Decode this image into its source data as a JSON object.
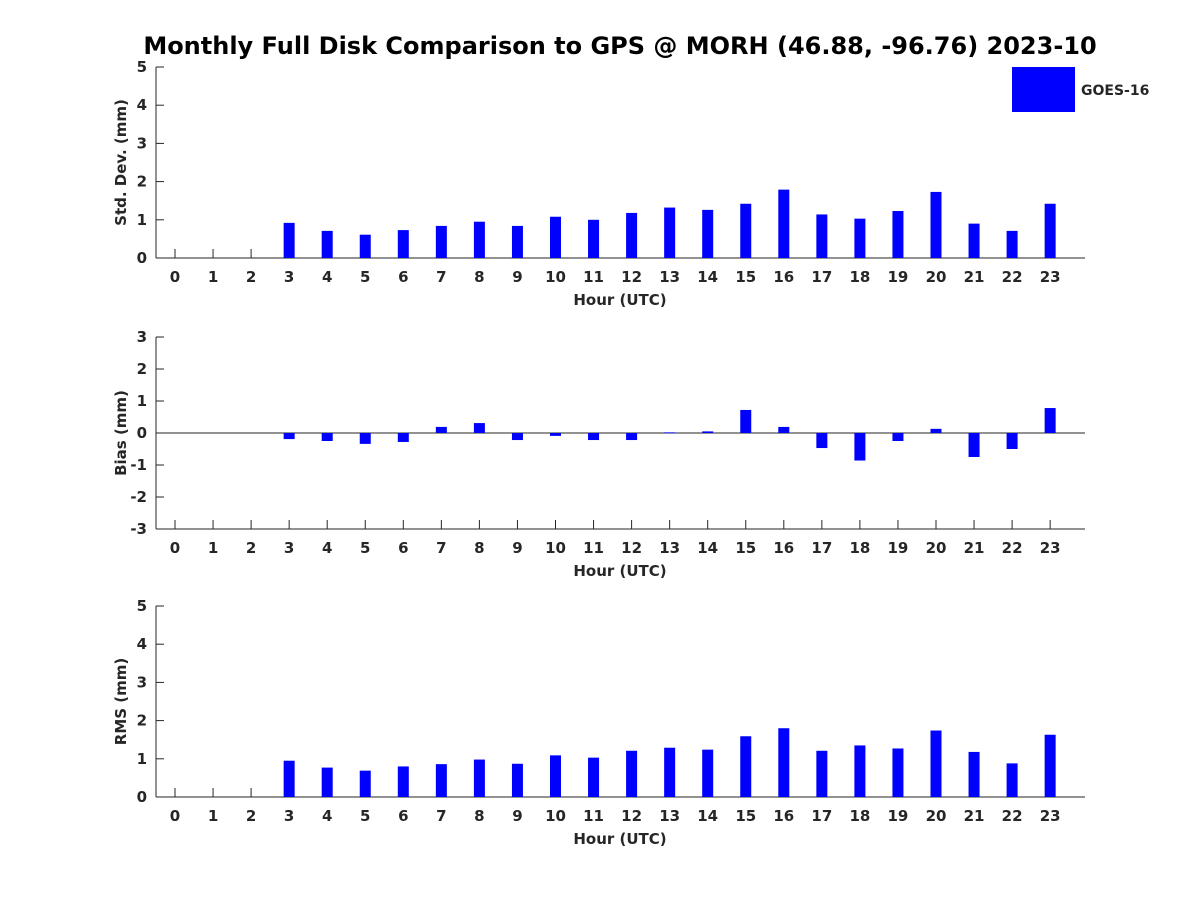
{
  "title": "Monthly Full Disk Comparison to GPS @ MORH (46.88, -96.76) 2023-10",
  "legend": {
    "label": "GOES-16",
    "color": "#0000ff",
    "position": "top-right"
  },
  "chart_data": [
    {
      "type": "bar",
      "xlabel": "Hour (UTC)",
      "ylabel": "Std. Dev. (mm)",
      "ylim": [
        0,
        5
      ],
      "yticks": [
        0,
        1,
        2,
        3,
        4,
        5
      ],
      "categories": [
        "0",
        "1",
        "2",
        "3",
        "4",
        "5",
        "6",
        "7",
        "8",
        "9",
        "10",
        "11",
        "12",
        "13",
        "14",
        "15",
        "16",
        "17",
        "18",
        "19",
        "20",
        "21",
        "22",
        "23"
      ],
      "series": [
        {
          "name": "GOES-16",
          "color": "#0000ff",
          "values": [
            null,
            null,
            null,
            0.92,
            0.71,
            0.61,
            0.73,
            0.84,
            0.95,
            0.84,
            1.08,
            1.0,
            1.18,
            1.32,
            1.26,
            1.42,
            1.79,
            1.14,
            1.03,
            1.23,
            1.73,
            0.9,
            0.71,
            1.42
          ]
        }
      ],
      "grid": false
    },
    {
      "type": "bar",
      "xlabel": "Hour (UTC)",
      "ylabel": "Bias (mm)",
      "ylim": [
        -3,
        3
      ],
      "yticks": [
        -3,
        -2,
        -1,
        0,
        1,
        2,
        3
      ],
      "categories": [
        "0",
        "1",
        "2",
        "3",
        "4",
        "5",
        "6",
        "7",
        "8",
        "9",
        "10",
        "11",
        "12",
        "13",
        "14",
        "15",
        "16",
        "17",
        "18",
        "19",
        "20",
        "21",
        "22",
        "23"
      ],
      "series": [
        {
          "name": "GOES-16",
          "color": "#0000ff",
          "values": [
            null,
            null,
            null,
            -0.19,
            -0.25,
            -0.34,
            -0.28,
            0.19,
            0.31,
            -0.22,
            -0.09,
            -0.22,
            -0.22,
            0.02,
            0.05,
            0.72,
            0.19,
            -0.47,
            -0.86,
            -0.25,
            0.13,
            -0.75,
            -0.5,
            0.78
          ]
        }
      ],
      "grid": false
    },
    {
      "type": "bar",
      "xlabel": "Hour (UTC)",
      "ylabel": "RMS (mm)",
      "ylim": [
        0,
        5
      ],
      "yticks": [
        0,
        1,
        2,
        3,
        4,
        5
      ],
      "categories": [
        "0",
        "1",
        "2",
        "3",
        "4",
        "5",
        "6",
        "7",
        "8",
        "9",
        "10",
        "11",
        "12",
        "13",
        "14",
        "15",
        "16",
        "17",
        "18",
        "19",
        "20",
        "21",
        "22",
        "23"
      ],
      "series": [
        {
          "name": "GOES-16",
          "color": "#0000ff",
          "values": [
            null,
            null,
            null,
            0.95,
            0.77,
            0.69,
            0.8,
            0.86,
            0.98,
            0.87,
            1.09,
            1.03,
            1.21,
            1.29,
            1.24,
            1.59,
            1.8,
            1.21,
            1.35,
            1.27,
            1.74,
            1.18,
            0.88,
            1.63
          ]
        }
      ],
      "grid": false
    }
  ]
}
